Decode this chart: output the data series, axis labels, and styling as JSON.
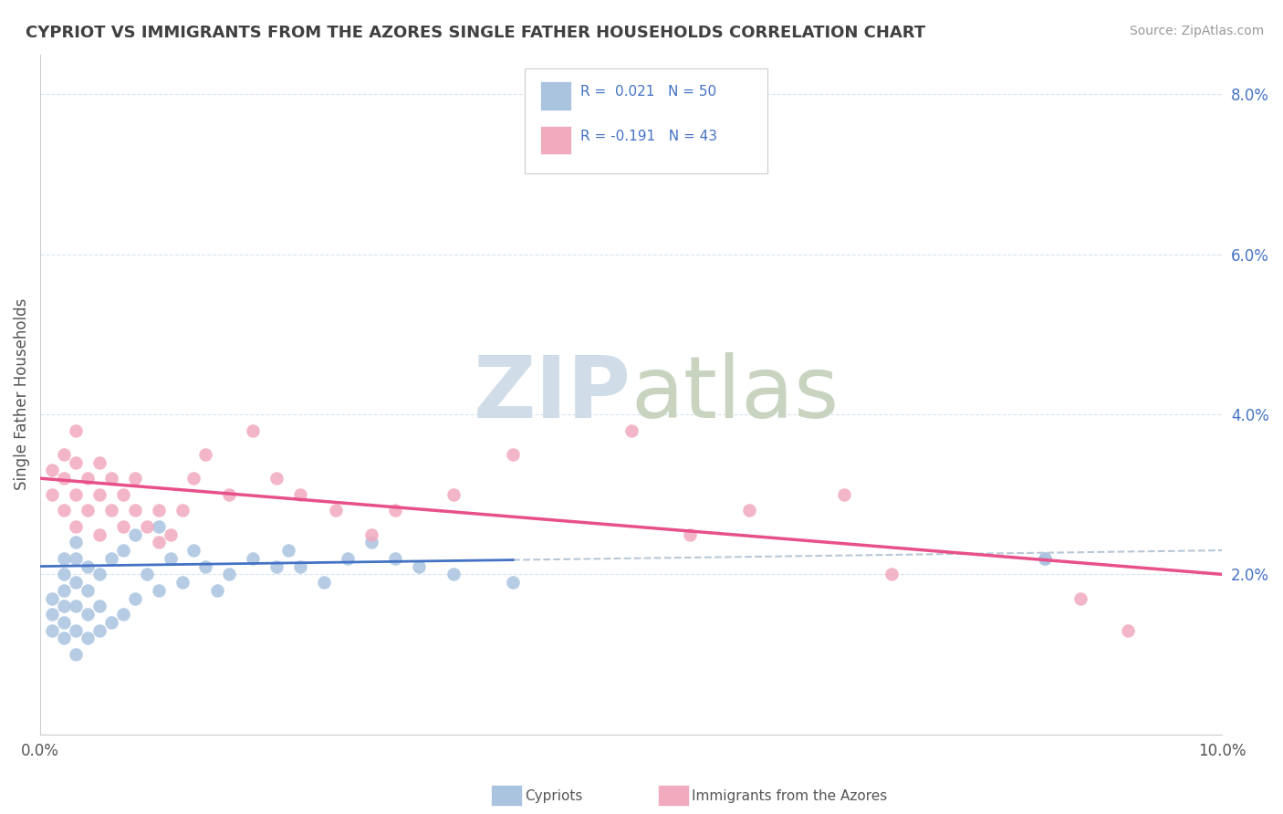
{
  "title": "CYPRIOT VS IMMIGRANTS FROM THE AZORES SINGLE FATHER HOUSEHOLDS CORRELATION CHART",
  "source": "Source: ZipAtlas.com",
  "ylabel": "Single Father Households",
  "xmin": 0.0,
  "xmax": 0.1,
  "ymin": 0.0,
  "ymax": 0.085,
  "yticks": [
    0.02,
    0.04,
    0.06,
    0.08
  ],
  "ytick_labels": [
    "2.0%",
    "4.0%",
    "6.0%",
    "8.0%"
  ],
  "xticks": [
    0.0,
    0.025,
    0.05,
    0.075,
    0.1
  ],
  "xtick_labels": [
    "0.0%",
    "",
    "",
    "",
    "10.0%"
  ],
  "r_cypriot": "0.021",
  "n_cypriot": "50",
  "r_azores": "-0.191",
  "n_azores": "43",
  "cypriot_color": "#aac4e0",
  "azores_color": "#f2aabf",
  "cypriot_line_color": "#4472c4",
  "azores_line_color": "#e8508a",
  "trendline_ext_color": "#b8c8d8",
  "grid_color": "#d8e4f0",
  "cypriot_x": [
    0.001,
    0.001,
    0.001,
    0.002,
    0.002,
    0.002,
    0.002,
    0.002,
    0.002,
    0.003,
    0.003,
    0.003,
    0.003,
    0.003,
    0.003,
    0.004,
    0.004,
    0.004,
    0.004,
    0.005,
    0.005,
    0.005,
    0.006,
    0.006,
    0.007,
    0.007,
    0.008,
    0.008,
    0.009,
    0.01,
    0.01,
    0.011,
    0.012,
    0.013,
    0.014,
    0.015,
    0.016,
    0.018,
    0.02,
    0.021,
    0.022,
    0.024,
    0.026,
    0.028,
    0.03,
    0.032,
    0.035,
    0.04,
    0.085,
    0.085
  ],
  "cypriot_y": [
    0.013,
    0.015,
    0.017,
    0.012,
    0.014,
    0.016,
    0.018,
    0.02,
    0.022,
    0.01,
    0.013,
    0.016,
    0.019,
    0.022,
    0.024,
    0.012,
    0.015,
    0.018,
    0.021,
    0.013,
    0.016,
    0.02,
    0.014,
    0.022,
    0.015,
    0.023,
    0.017,
    0.025,
    0.02,
    0.018,
    0.026,
    0.022,
    0.019,
    0.023,
    0.021,
    0.018,
    0.02,
    0.022,
    0.021,
    0.023,
    0.021,
    0.019,
    0.022,
    0.024,
    0.022,
    0.021,
    0.02,
    0.019,
    0.022,
    0.022
  ],
  "azores_x": [
    0.001,
    0.001,
    0.002,
    0.002,
    0.002,
    0.003,
    0.003,
    0.003,
    0.003,
    0.004,
    0.004,
    0.005,
    0.005,
    0.005,
    0.006,
    0.006,
    0.007,
    0.007,
    0.008,
    0.008,
    0.009,
    0.01,
    0.01,
    0.011,
    0.012,
    0.013,
    0.014,
    0.016,
    0.018,
    0.02,
    0.022,
    0.025,
    0.028,
    0.03,
    0.035,
    0.04,
    0.05,
    0.055,
    0.06,
    0.068,
    0.072,
    0.088,
    0.092
  ],
  "azores_y": [
    0.03,
    0.033,
    0.028,
    0.032,
    0.035,
    0.026,
    0.03,
    0.034,
    0.038,
    0.028,
    0.032,
    0.025,
    0.03,
    0.034,
    0.028,
    0.032,
    0.026,
    0.03,
    0.028,
    0.032,
    0.026,
    0.024,
    0.028,
    0.025,
    0.028,
    0.032,
    0.035,
    0.03,
    0.038,
    0.032,
    0.03,
    0.028,
    0.025,
    0.028,
    0.03,
    0.035,
    0.038,
    0.025,
    0.028,
    0.03,
    0.02,
    0.017,
    0.013
  ],
  "cyp_line_x0": 0.0,
  "cyp_line_x_solid_end": 0.04,
  "cyp_line_y0": 0.0208,
  "cyp_line_slope": 0.04,
  "az_line_x0": 0.0,
  "az_line_x_end": 0.1,
  "az_line_y0": 0.032,
  "az_line_slope": -0.12
}
